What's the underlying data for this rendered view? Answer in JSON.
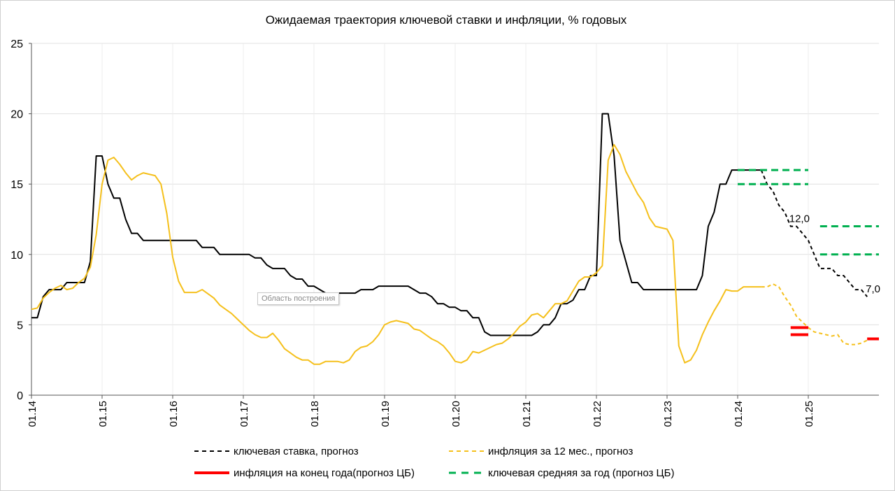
{
  "chart_data": {
    "type": "line",
    "title": "Ожидаемая траектория ключевой ставки и инфляции, % годовых",
    "xlabel": "",
    "ylabel": "",
    "ylim": [
      0,
      25
    ],
    "xlim": [
      "2014-01",
      "2026-01"
    ],
    "y_ticks": [
      "0",
      "5",
      "10",
      "15",
      "20",
      "25"
    ],
    "x_ticks": [
      {
        "date": "2014-01",
        "label": "01.14"
      },
      {
        "date": "2015-01",
        "label": "01.15"
      },
      {
        "date": "2016-01",
        "label": "01.16"
      },
      {
        "date": "2017-01",
        "label": "01.17"
      },
      {
        "date": "2018-01",
        "label": "01.18"
      },
      {
        "date": "2019-01",
        "label": "01.19"
      },
      {
        "date": "2020-01",
        "label": "01.20"
      },
      {
        "date": "2021-01",
        "label": "01.21"
      },
      {
        "date": "2022-01",
        "label": "01.22"
      },
      {
        "date": "2023-01",
        "label": "01.23"
      },
      {
        "date": "2024-01",
        "label": "01.24"
      },
      {
        "date": "2025-01",
        "label": "01.25"
      }
    ],
    "grid": true,
    "legend_position": "bottom",
    "colors": {
      "key_rate": "#000000",
      "inflation": "#f5c01c",
      "cb_inflation": "#ff0000",
      "cb_key_avg": "#00b050"
    },
    "series": [
      {
        "id": "key_rate",
        "style": "solid",
        "color": "#000000",
        "start": "2014-01",
        "values": [
          5.5,
          5.5,
          7,
          7.5,
          7.5,
          7.5,
          8,
          8,
          8,
          8,
          9.5,
          17,
          17,
          15,
          14,
          14,
          12.5,
          11.5,
          11.5,
          11,
          11,
          11,
          11,
          11,
          11,
          11,
          11,
          11,
          11,
          10.5,
          10.5,
          10.5,
          10,
          10,
          10,
          10,
          10,
          10,
          9.75,
          9.75,
          9.25,
          9,
          9,
          9,
          8.5,
          8.25,
          8.25,
          7.75,
          7.75,
          7.5,
          7.25,
          7.25,
          7.25,
          7.25,
          7.25,
          7.25,
          7.5,
          7.5,
          7.5,
          7.75,
          7.75,
          7.75,
          7.75,
          7.75,
          7.75,
          7.5,
          7.25,
          7.25,
          7,
          6.5,
          6.5,
          6.25,
          6.25,
          6,
          6,
          5.5,
          5.5,
          4.5,
          4.25,
          4.25,
          4.25,
          4.25,
          4.25,
          4.25,
          4.25,
          4.25,
          4.5,
          5,
          5,
          5.5,
          6.5,
          6.5,
          6.75,
          7.5,
          7.5,
          8.5,
          8.5,
          20,
          20,
          17,
          11,
          9.5,
          8,
          8,
          7.5,
          7.5,
          7.5,
          7.5,
          7.5,
          7.5,
          7.5,
          7.5,
          7.5,
          7.5,
          8.5,
          12,
          13,
          15,
          15,
          16,
          16,
          16,
          16,
          16,
          16
        ]
      },
      {
        "id": "key_rate_forecast",
        "name": "ключевая ставка, прогноз",
        "style": "dashed",
        "color": "#000000",
        "start": "2024-05",
        "values": [
          16,
          15,
          14.5,
          13.5,
          13,
          12,
          12,
          11.5,
          11,
          10,
          9,
          9,
          9,
          8.5,
          8.5,
          8,
          7.5,
          7.5,
          7.0
        ]
      },
      {
        "id": "inflation",
        "style": "solid",
        "color": "#f5c01c",
        "start": "2014-01",
        "values": [
          6.1,
          6.2,
          6.9,
          7.3,
          7.6,
          7.8,
          7.5,
          7.6,
          8.0,
          8.3,
          9.1,
          11.4,
          15.0,
          16.7,
          16.9,
          16.4,
          15.8,
          15.3,
          15.6,
          15.8,
          15.7,
          15.6,
          15.0,
          12.9,
          9.8,
          8.1,
          7.3,
          7.3,
          7.3,
          7.5,
          7.2,
          6.9,
          6.4,
          6.1,
          5.8,
          5.4,
          5.0,
          4.6,
          4.3,
          4.1,
          4.1,
          4.4,
          3.9,
          3.3,
          3.0,
          2.7,
          2.5,
          2.5,
          2.2,
          2.2,
          2.4,
          2.4,
          2.4,
          2.3,
          2.5,
          3.1,
          3.4,
          3.5,
          3.8,
          4.3,
          5.0,
          5.2,
          5.3,
          5.2,
          5.1,
          4.7,
          4.6,
          4.3,
          4.0,
          3.8,
          3.5,
          3.0,
          2.4,
          2.3,
          2.5,
          3.1,
          3.0,
          3.2,
          3.4,
          3.6,
          3.7,
          4.0,
          4.4,
          4.9,
          5.2,
          5.7,
          5.8,
          5.5,
          6.0,
          6.5,
          6.5,
          6.7,
          7.4,
          8.1,
          8.4,
          8.4,
          8.7,
          9.2,
          16.7,
          17.8,
          17.1,
          15.9,
          15.1,
          14.3,
          13.7,
          12.6,
          12.0,
          11.9,
          11.8,
          11.0,
          3.5,
          2.3,
          2.5,
          3.2,
          4.3,
          5.2,
          6.0,
          6.7,
          7.5,
          7.4,
          7.4,
          7.7,
          7.7,
          7.7,
          7.7
        ]
      },
      {
        "id": "inflation_forecast",
        "name": "инфляция за 12 мес., прогноз",
        "style": "dashed",
        "color": "#f5c01c",
        "start": "2024-05",
        "values": [
          7.7,
          7.7,
          7.9,
          7.7,
          7.0,
          6.4,
          5.6,
          5.2,
          4.8,
          4.5,
          4.4,
          4.3,
          4.2,
          4.3,
          3.7,
          3.6,
          3.6,
          3.7,
          3.9
        ]
      }
    ],
    "segments": [
      {
        "id": "cb_inflation",
        "name": "инфляция на конец года(прогноз ЦБ)",
        "style": "solid-thick",
        "color": "#ff0000",
        "items": [
          {
            "from": "2024-10",
            "to": "2025-01",
            "value": 4.8
          },
          {
            "from": "2024-10",
            "to": "2025-01",
            "value": 4.3
          },
          {
            "from": "2025-11",
            "to": "2026-01",
            "value": 4.0
          }
        ]
      },
      {
        "id": "cb_key_avg",
        "name": "ключевая средняя за год (прогноз ЦБ)",
        "style": "dashed-thick",
        "color": "#00b050",
        "items": [
          {
            "from": "2024-01",
            "to": "2025-01",
            "value": 16
          },
          {
            "from": "2024-01",
            "to": "2025-01",
            "value": 15
          },
          {
            "from": "2025-03",
            "to": "2026-01",
            "value": 12
          },
          {
            "from": "2025-03",
            "to": "2026-01",
            "value": 10
          }
        ]
      }
    ],
    "annotations": [
      {
        "date": "2024-10",
        "value": 12.0,
        "text": "12,0"
      },
      {
        "date": "2025-11",
        "value": 7.0,
        "text": "7,0"
      }
    ]
  },
  "tooltip": "Область построения"
}
